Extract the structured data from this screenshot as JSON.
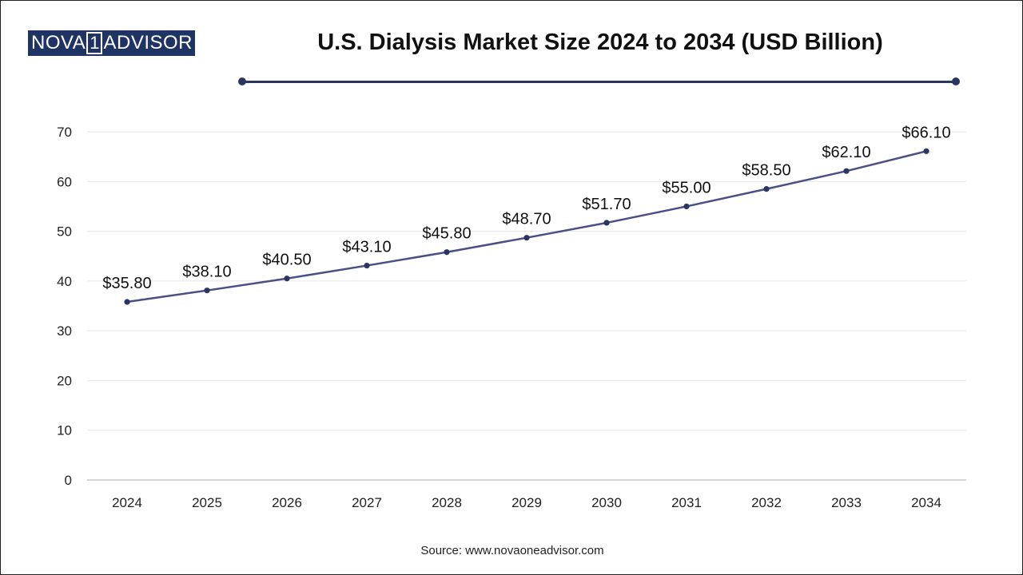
{
  "logo": {
    "part1": "NOVA",
    "part2": "1",
    "part3": "ADVISOR"
  },
  "source": "Source: www.novaoneadvisor.com",
  "colors": {
    "line": "#4a4f86",
    "marker": "#2b3560",
    "grid": "#e6e6e6",
    "title_rule": "#2b3560",
    "logo_bg": "#1f3364"
  },
  "chart_data": {
    "type": "line",
    "title": "U.S. Dialysis Market Size 2024 to 2034 (USD Billion)",
    "xlabel": "",
    "ylabel": "",
    "categories": [
      "2024",
      "2025",
      "2026",
      "2027",
      "2028",
      "2029",
      "2030",
      "2031",
      "2032",
      "2033",
      "2034"
    ],
    "values": [
      35.8,
      38.1,
      40.5,
      43.1,
      45.8,
      48.7,
      51.7,
      55.0,
      58.5,
      62.1,
      66.1
    ],
    "data_labels": [
      "$35.80",
      "$38.10",
      "$40.50",
      "$43.10",
      "$45.80",
      "$48.70",
      "$51.70",
      "$55.00",
      "$58.50",
      "$62.10",
      "$66.10"
    ],
    "ylim": [
      0,
      70
    ],
    "yticks": [
      0,
      10,
      20,
      30,
      40,
      50,
      60,
      70
    ],
    "grid": true,
    "legend": "none"
  }
}
